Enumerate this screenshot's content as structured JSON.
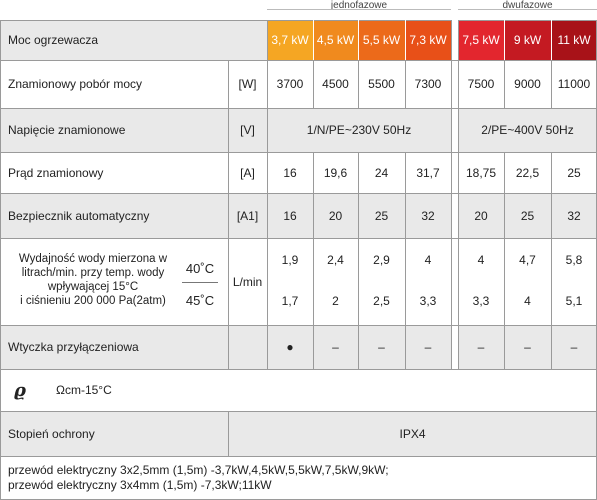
{
  "groups": {
    "single_phase": "jednofazowe",
    "three_phase": "dwufazowe"
  },
  "rows": {
    "heater": {
      "label": "Moc ogrzewacza",
      "powers": [
        "3,7 kW",
        "4,5 kW",
        "5,5 kW",
        "7,3 kW",
        "7,5 kW",
        "9 kW",
        "11 kW"
      ],
      "colors": [
        "#f5a623",
        "#f08a1e",
        "#ec6a1a",
        "#e85018",
        "#e3262e",
        "#c41a22",
        "#a81218"
      ]
    },
    "rated_power": {
      "label": "Znamionowy pobór mocy",
      "unit": "[W]",
      "values": [
        "3700",
        "4500",
        "5500",
        "7300",
        "7500",
        "9000",
        "11000"
      ]
    },
    "voltage": {
      "label": "Napięcie znamionowe",
      "unit": "[V]",
      "single": "1/N/PE~230V 50Hz",
      "three": "2/PE~400V 50Hz"
    },
    "current": {
      "label": "Prąd znamionowy",
      "unit": "[A]",
      "values": [
        "16",
        "19,6",
        "24",
        "31,7",
        "18,75",
        "22,5",
        "25"
      ]
    },
    "fuse": {
      "label": "Bezpiecznik automatyczny",
      "unit": "[A1]",
      "values": [
        "16",
        "20",
        "25",
        "32",
        "20",
        "25",
        "32"
      ]
    },
    "flow": {
      "label_lines": [
        "Wydajność wody mierzona w",
        "litrach/min. przy temp. wody",
        "wpływającej 15°C",
        "i ciśnieniu 200 000 Pa(2atm)"
      ],
      "temp40": "40˚C",
      "temp45": "45˚C",
      "unit": "L/min",
      "values40": [
        "1,9",
        "2,4",
        "2,9",
        "4",
        "4",
        "4,7",
        "5,8"
      ],
      "values45": [
        "1,7",
        "2",
        "2,5",
        "3,3",
        "3,3",
        "4",
        "5,1"
      ]
    },
    "plug": {
      "label": "Wtyczka przyłączeniowa",
      "values": [
        "●",
        "–",
        "–",
        "–",
        "–",
        "–",
        "–"
      ]
    },
    "resistivity": {
      "symbol": "ϱ",
      "label": "Ωcm-15°C"
    },
    "protection": {
      "label": "Stopień ochrony",
      "value": "IPX4"
    },
    "cables": [
      "przewód elektryczny 3x2,5mm (1,5m) -3,7kW,4,5kW,5,5kW,7,5kW,9kW;",
      "przewód elektryczny 3x4mm (1,5m) -7,3kW;11kW"
    ]
  }
}
